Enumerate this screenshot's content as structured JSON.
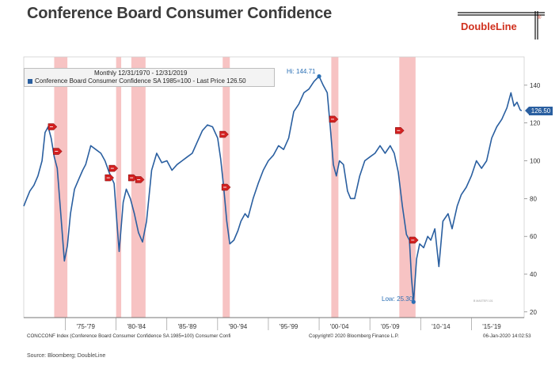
{
  "page": {
    "title": "Conference Board Consumer Confidence",
    "logo": "DoubleLine",
    "logo_reg": "®",
    "source": "Source: Bloomberg; DoubleLine",
    "footer_left": "CONCCONF Index (Conference Board Consumer Confidence SA 1985=100) Consumer Confi",
    "footer_mid": "Copyright© 2020 Bloomberg Finance L.P.",
    "footer_right": "06-Jan-2020 14:02:53",
    "watermark": "B MASTER 101"
  },
  "legend": {
    "range": "Monthly 12/31/1970 - 12/31/2019",
    "series_label": "Conference Board Consumer Confidence SA 1985=100 - Last Price 126.50"
  },
  "annotations": {
    "hi": "Hi: 144.71",
    "low": "Low: 25.30",
    "last": "126.50"
  },
  "colors": {
    "line": "#2a5fa0",
    "recession": "#f6b9b9",
    "marker": "#d32020",
    "logo": "#d0301e"
  },
  "chart_data": {
    "type": "line",
    "title": "Conference Board Consumer Confidence",
    "xlabel": "",
    "ylabel": "",
    "xlim": [
      1970.9,
      2020.2
    ],
    "ylim": [
      17,
      155
    ],
    "y_ticks": [
      20,
      40,
      60,
      80,
      100,
      120,
      140
    ],
    "x_tick_labels": [
      {
        "x": 1977.0,
        "label": "'75-'79"
      },
      {
        "x": 1982.0,
        "label": "'80-'84"
      },
      {
        "x": 1987.0,
        "label": "'85-'89"
      },
      {
        "x": 1992.0,
        "label": "'90-'94"
      },
      {
        "x": 1997.0,
        "label": "'95-'99"
      },
      {
        "x": 2002.0,
        "label": "'00-'04"
      },
      {
        "x": 2007.0,
        "label": "'05-'09"
      },
      {
        "x": 2012.0,
        "label": "'10-'14"
      },
      {
        "x": 2017.0,
        "label": "'15-'19"
      }
    ],
    "x_tick_positions": [
      1975,
      1980,
      1985,
      1990,
      1995,
      2000,
      2005,
      2010,
      2015
    ],
    "recessions": [
      [
        1973.9,
        1975.2
      ],
      [
        1980.0,
        1980.5
      ],
      [
        1981.5,
        1982.9
      ],
      [
        1990.5,
        1991.2
      ],
      [
        2001.2,
        2001.9
      ],
      [
        2007.9,
        2009.5
      ]
    ],
    "markers": [
      {
        "x": 1973.7,
        "y": 118
      },
      {
        "x": 1974.2,
        "y": 105
      },
      {
        "x": 1979.3,
        "y": 91
      },
      {
        "x": 1979.7,
        "y": 96
      },
      {
        "x": 1981.6,
        "y": 91
      },
      {
        "x": 1982.3,
        "y": 90
      },
      {
        "x": 1990.6,
        "y": 114
      },
      {
        "x": 1990.8,
        "y": 86
      },
      {
        "x": 2001.4,
        "y": 122
      },
      {
        "x": 2007.9,
        "y": 116
      },
      {
        "x": 2009.3,
        "y": 58
      }
    ],
    "grid": false,
    "series": [
      {
        "name": "Conference Board Consumer Confidence SA 1985=100",
        "x": [
          1970.9,
          1971.2,
          1971.5,
          1971.9,
          1972.3,
          1972.7,
          1973.0,
          1973.3,
          1973.6,
          1973.9,
          1974.2,
          1974.5,
          1974.9,
          1975.2,
          1975.5,
          1975.9,
          1976.3,
          1976.7,
          1977.0,
          1977.5,
          1978.0,
          1978.5,
          1978.9,
          1979.3,
          1979.8,
          1980.1,
          1980.3,
          1980.7,
          1981.0,
          1981.4,
          1981.8,
          1982.2,
          1982.6,
          1983.0,
          1983.5,
          1984.0,
          1984.5,
          1985.0,
          1985.5,
          1986.0,
          1986.5,
          1987.0,
          1987.5,
          1988.0,
          1988.5,
          1989.0,
          1989.5,
          1990.0,
          1990.3,
          1990.6,
          1990.9,
          1991.2,
          1991.6,
          1992.0,
          1992.3,
          1992.7,
          1993.0,
          1993.5,
          1994.0,
          1994.5,
          1995.0,
          1995.5,
          1996.0,
          1996.5,
          1997.0,
          1997.5,
          1998.0,
          1998.5,
          1999.0,
          1999.5,
          2000.0,
          2000.4,
          2000.8,
          2001.1,
          2001.4,
          2001.7,
          2002.0,
          2002.4,
          2002.8,
          2003.1,
          2003.5,
          2004.0,
          2004.5,
          2005.0,
          2005.5,
          2006.0,
          2006.5,
          2007.0,
          2007.4,
          2007.8,
          2008.2,
          2008.6,
          2008.9,
          2009.1,
          2009.3,
          2009.6,
          2009.9,
          2010.3,
          2010.7,
          2011.0,
          2011.4,
          2011.8,
          2012.2,
          2012.7,
          2013.1,
          2013.6,
          2014.0,
          2014.5,
          2015.0,
          2015.5,
          2016.0,
          2016.5,
          2017.0,
          2017.5,
          2018.0,
          2018.5,
          2018.9,
          2019.2,
          2019.5,
          2019.8,
          2019.95
        ],
        "y": [
          76,
          80,
          84,
          87,
          92,
          100,
          115,
          118,
          112,
          102,
          96,
          75,
          47,
          55,
          72,
          85,
          90,
          95,
          98,
          108,
          106,
          104,
          100,
          94,
          88,
          66,
          52,
          78,
          85,
          80,
          72,
          62,
          57,
          68,
          95,
          104,
          99,
          100,
          95,
          98,
          100,
          102,
          104,
          110,
          116,
          119,
          118,
          112,
          101,
          86,
          68,
          56,
          58,
          63,
          68,
          72,
          70,
          80,
          88,
          95,
          100,
          103,
          108,
          106,
          112,
          126,
          130,
          136,
          138,
          142,
          144.7,
          140,
          136,
          118,
          98,
          92,
          100,
          98,
          84,
          80,
          80,
          92,
          100,
          102,
          104,
          108,
          104,
          108,
          104,
          94,
          76,
          61,
          58,
          38,
          25.3,
          48,
          56,
          54,
          60,
          58,
          64,
          44,
          68,
          72,
          64,
          76,
          82,
          86,
          92,
          100,
          96,
          100,
          112,
          118,
          122,
          128,
          136,
          129,
          131,
          127,
          126.5
        ]
      }
    ]
  }
}
